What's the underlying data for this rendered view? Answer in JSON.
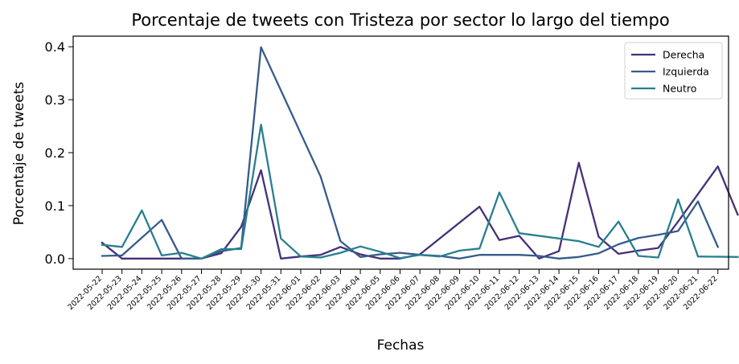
{
  "chart_data": {
    "type": "line",
    "title": "Porcentaje de tweets con Tristeza por sector lo largo del tiempo",
    "xlabel": "Fechas",
    "ylabel": "Porcentaje de tweets",
    "ylim": [
      -0.02,
      0.42
    ],
    "yticks": [
      0.0,
      0.1,
      0.2,
      0.3,
      0.4
    ],
    "ytick_labels": [
      "0.0",
      "0.1",
      "0.2",
      "0.3",
      "0.4"
    ],
    "grid": false,
    "legend": "top-right",
    "x": [
      "2022-05-22",
      "2022-05-23",
      "2022-05-24",
      "2022-05-25",
      "2022-05-26",
      "2022-05-27",
      "2022-05-28",
      "2022-05-29",
      "2022-05-30",
      "2022-05-31",
      "2022-06-01",
      "2022-06-02",
      "2022-06-03",
      "2022-06-04",
      "2022-06-05",
      "2022-06-06",
      "2022-06-07",
      "2022-06-08",
      "2022-06-09",
      "2022-06-10",
      "2022-06-11",
      "2022-06-12",
      "2022-06-13",
      "2022-06-14",
      "2022-06-15",
      "2022-06-16",
      "2022-06-17",
      "2022-06-18",
      "2022-06-19",
      "2022-06-20",
      "2022-06-21",
      "2022-06-22"
    ],
    "series": [
      {
        "name": "Derecha",
        "color": "#45307a",
        "points": [
          [
            "2022-05-22",
            0.03
          ],
          [
            "2022-05-23",
            0.0
          ],
          [
            "2022-05-24",
            0.0
          ],
          [
            "2022-05-25",
            0.0
          ],
          [
            "2022-05-26",
            0.0
          ],
          [
            "2022-05-27",
            0.0
          ],
          [
            "2022-05-28",
            0.01
          ],
          [
            "2022-05-29",
            0.06
          ],
          [
            "2022-05-30",
            0.167
          ],
          [
            "2022-05-31",
            0.0
          ],
          [
            "2022-06-01",
            0.004
          ],
          [
            "2022-06-02",
            0.007
          ],
          [
            "2022-06-03",
            0.022
          ],
          [
            "2022-06-04",
            0.008
          ],
          [
            "2022-06-05",
            0.0
          ],
          [
            "2022-06-06",
            0.0
          ],
          [
            "2022-06-07",
            0.008
          ],
          [
            "2022-06-10",
            0.098
          ],
          [
            "2022-06-11",
            0.035
          ],
          [
            "2022-06-12",
            0.043
          ],
          [
            "2022-06-13",
            0.0
          ],
          [
            "2022-06-14",
            0.014
          ],
          [
            "2022-06-15",
            0.181
          ],
          [
            "2022-06-16",
            0.041
          ],
          [
            "2022-06-17",
            0.009
          ],
          [
            "2022-06-18",
            0.015
          ],
          [
            "2022-06-19",
            0.02
          ],
          [
            "2022-06-20",
            0.07
          ],
          [
            "2022-06-21",
            0.122
          ],
          [
            "2022-06-22",
            0.174
          ],
          [
            "2022-06-23",
            0.083
          ]
        ]
      },
      {
        "name": "Izquierda",
        "color": "#365b8c",
        "points": [
          [
            "2022-05-22",
            0.005
          ],
          [
            "2022-05-23",
            0.006
          ],
          [
            "2022-05-25",
            0.073
          ],
          [
            "2022-05-26",
            0.0
          ],
          [
            "2022-05-27",
            0.0
          ],
          [
            "2022-05-28",
            0.014
          ],
          [
            "2022-05-29",
            0.02
          ],
          [
            "2022-05-30",
            0.399
          ],
          [
            "2022-06-02",
            0.155
          ],
          [
            "2022-06-03",
            0.033
          ],
          [
            "2022-06-04",
            0.003
          ],
          [
            "2022-06-05",
            0.008
          ],
          [
            "2022-06-06",
            0.011
          ],
          [
            "2022-06-07",
            0.007
          ],
          [
            "2022-06-08",
            0.005
          ],
          [
            "2022-06-09",
            0.0
          ],
          [
            "2022-06-10",
            0.007
          ],
          [
            "2022-06-11",
            0.007
          ],
          [
            "2022-06-12",
            0.007
          ],
          [
            "2022-06-13",
            0.005
          ],
          [
            "2022-06-14",
            0.0
          ],
          [
            "2022-06-15",
            0.003
          ],
          [
            "2022-06-16",
            0.01
          ],
          [
            "2022-06-17",
            0.027
          ],
          [
            "2022-06-18",
            0.039
          ],
          [
            "2022-06-19",
            0.045
          ],
          [
            "2022-06-20",
            0.052
          ],
          [
            "2022-06-21",
            0.108
          ],
          [
            "2022-06-22",
            0.022
          ]
        ]
      },
      {
        "name": "Neutro",
        "color": "#277f8e",
        "points": [
          [
            "2022-05-22",
            0.026
          ],
          [
            "2022-05-23",
            0.022
          ],
          [
            "2022-05-24",
            0.091
          ],
          [
            "2022-05-25",
            0.006
          ],
          [
            "2022-05-26",
            0.011
          ],
          [
            "2022-05-27",
            0.0
          ],
          [
            "2022-05-28",
            0.018
          ],
          [
            "2022-05-29",
            0.018
          ],
          [
            "2022-05-30",
            0.253
          ],
          [
            "2022-05-31",
            0.038
          ],
          [
            "2022-06-01",
            0.004
          ],
          [
            "2022-06-02",
            0.002
          ],
          [
            "2022-06-03",
            0.011
          ],
          [
            "2022-06-04",
            0.023
          ],
          [
            "2022-06-05",
            0.013
          ],
          [
            "2022-06-06",
            0.001
          ],
          [
            "2022-06-07",
            0.007
          ],
          [
            "2022-06-08",
            0.004
          ],
          [
            "2022-06-09",
            0.015
          ],
          [
            "2022-06-10",
            0.019
          ],
          [
            "2022-06-11",
            0.125
          ],
          [
            "2022-06-12",
            0.048
          ],
          [
            "2022-06-15",
            0.033
          ],
          [
            "2022-06-16",
            0.022
          ],
          [
            "2022-06-17",
            0.07
          ],
          [
            "2022-06-18",
            0.005
          ],
          [
            "2022-06-19",
            0.002
          ],
          [
            "2022-06-20",
            0.112
          ],
          [
            "2022-06-21",
            0.004
          ],
          [
            "2022-06-23",
            0.003
          ]
        ]
      }
    ]
  }
}
